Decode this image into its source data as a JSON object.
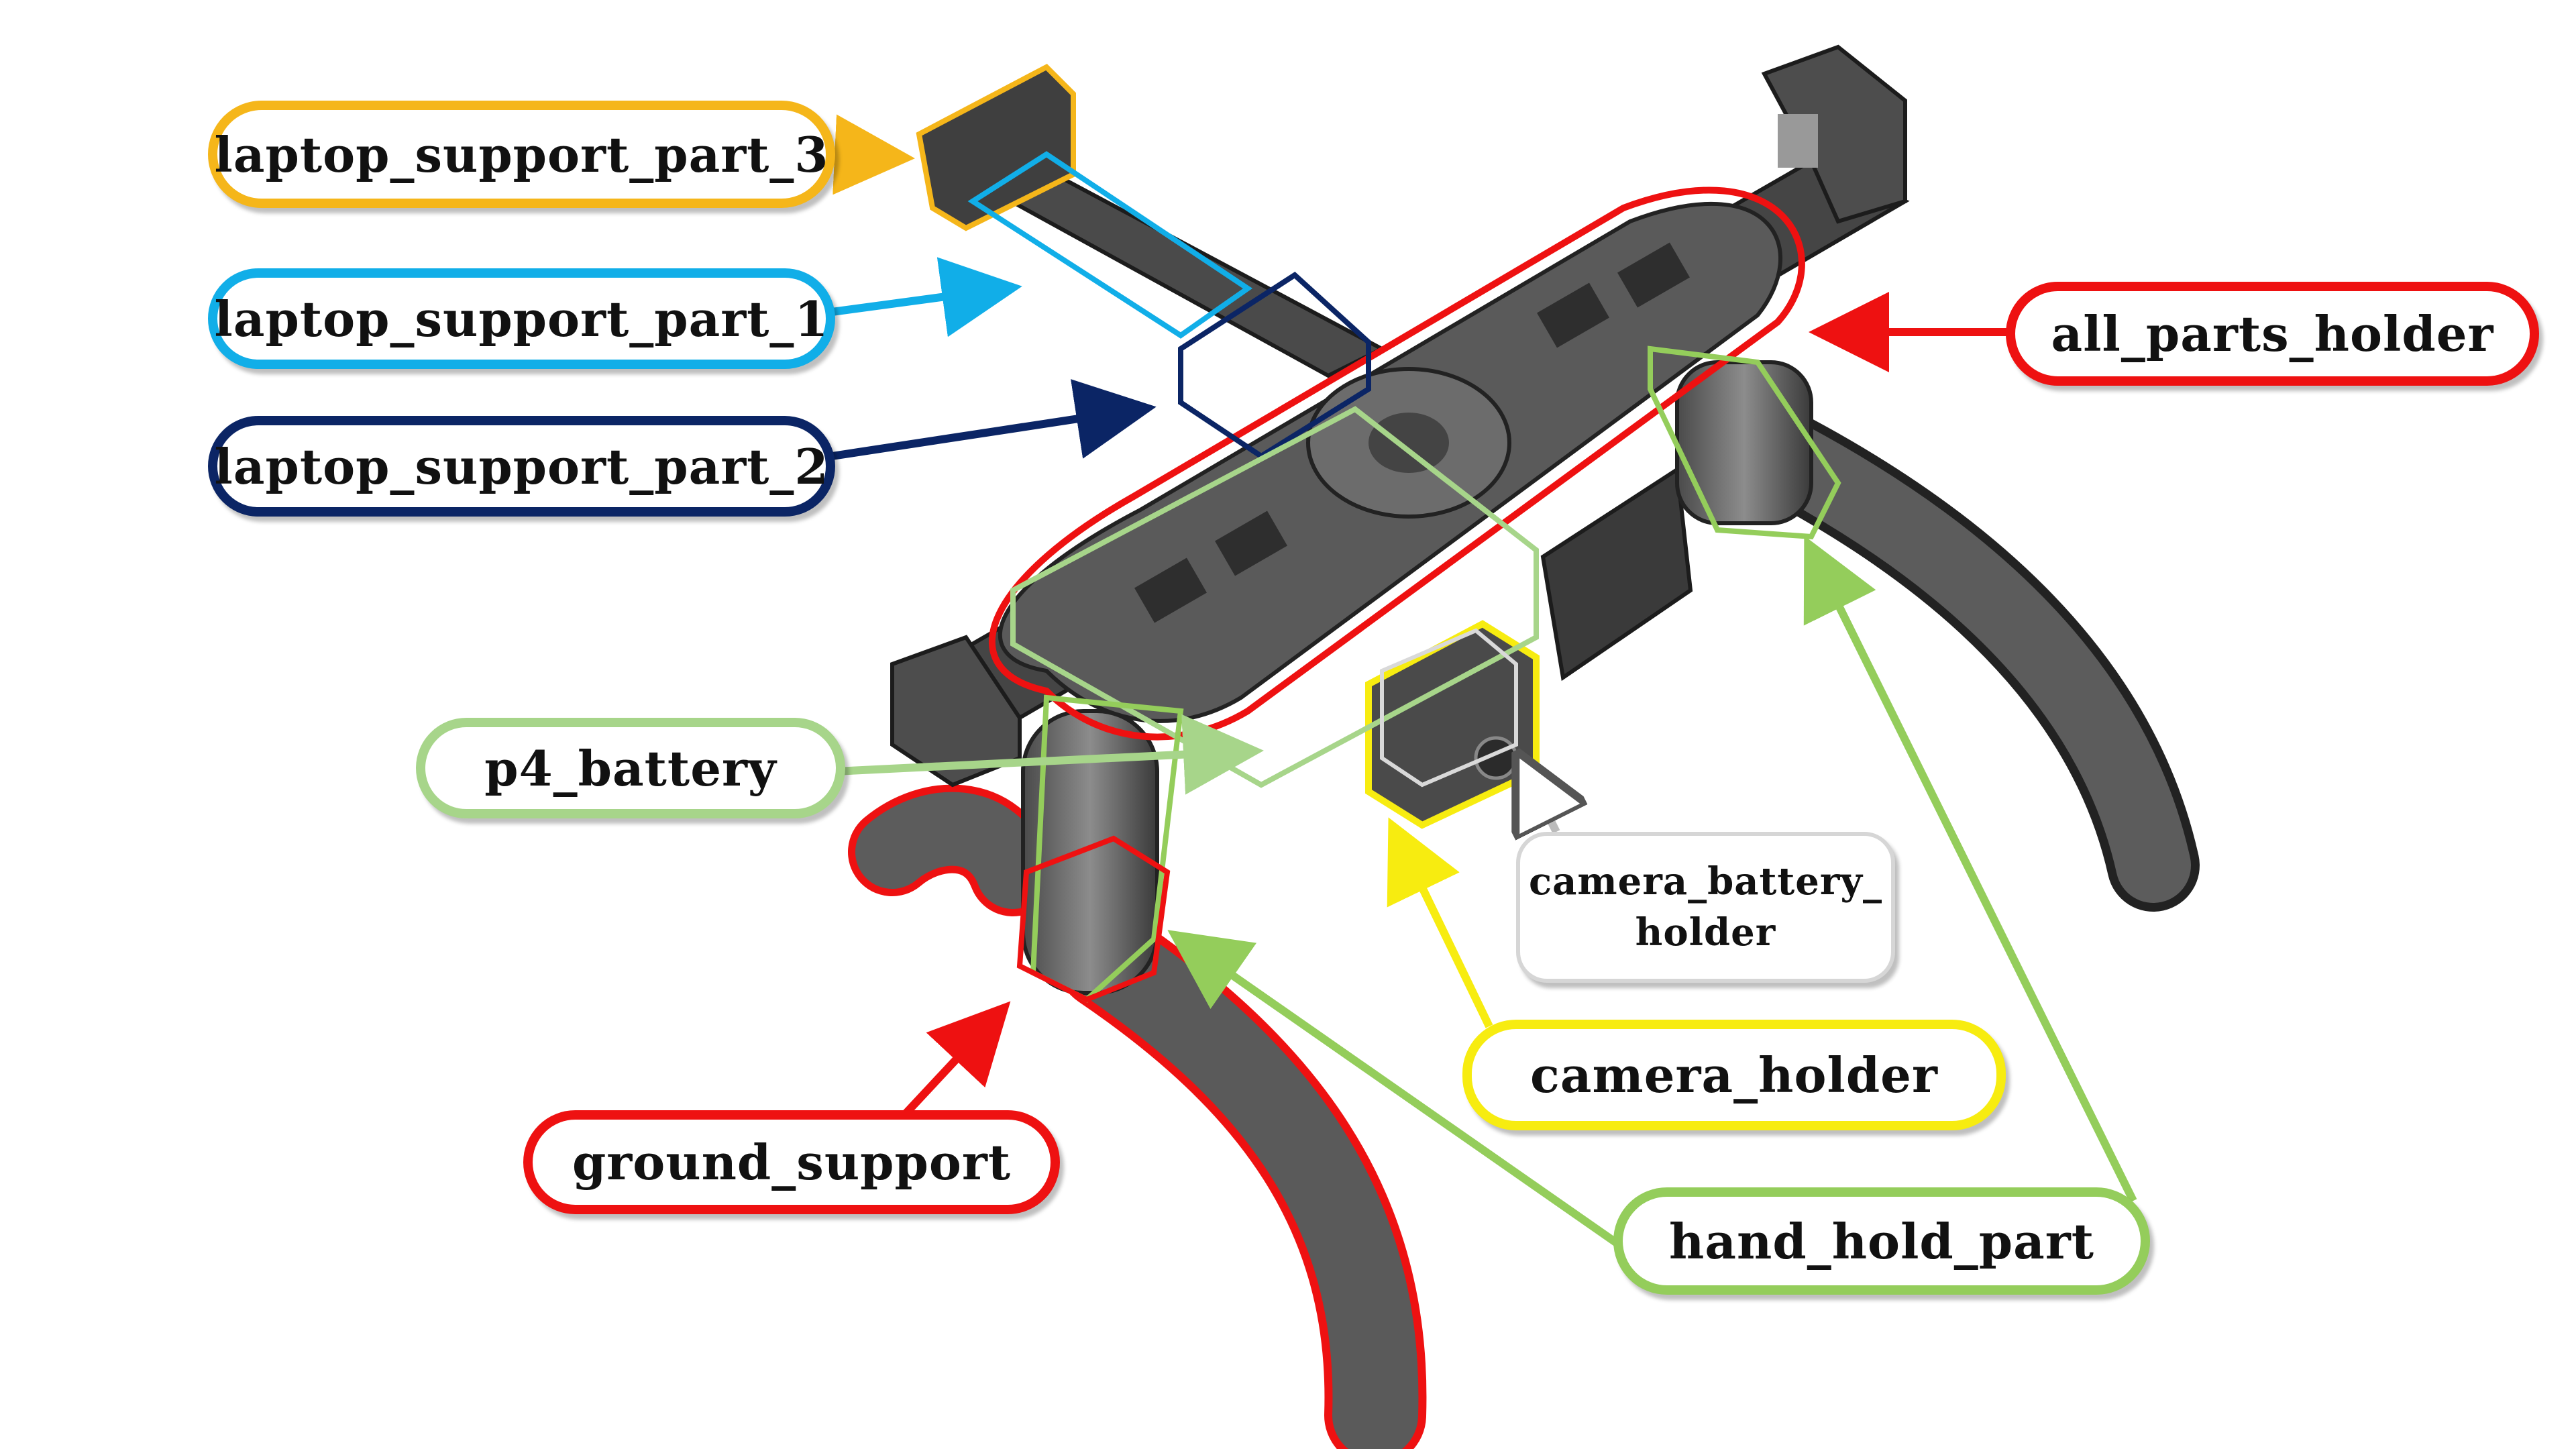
{
  "colors": {
    "gold": "#f5b61a",
    "sky": "#11aee8",
    "navy": "#0b2565",
    "red": "#ee1111",
    "green": "#94cd5b",
    "lightgreen": "#a7d58a",
    "yellow": "#f7ec10",
    "grey": "#8a8a8a",
    "dark": "#3b3b3b"
  },
  "labels": {
    "laptop_support_part_3": "laptop_support_part_3",
    "laptop_support_part_1": "laptop_support_part_1",
    "laptop_support_part_2": "laptop_support_part_2",
    "all_parts_holder": "all_parts_holder",
    "p4_battery": "p4_battery",
    "camera_battery_holder_line1": "camera_battery_",
    "camera_battery_holder_line2": "holder",
    "camera_holder": "camera_holder",
    "ground_support": "ground_support",
    "hand_hold_part": "hand_hold_part"
  }
}
